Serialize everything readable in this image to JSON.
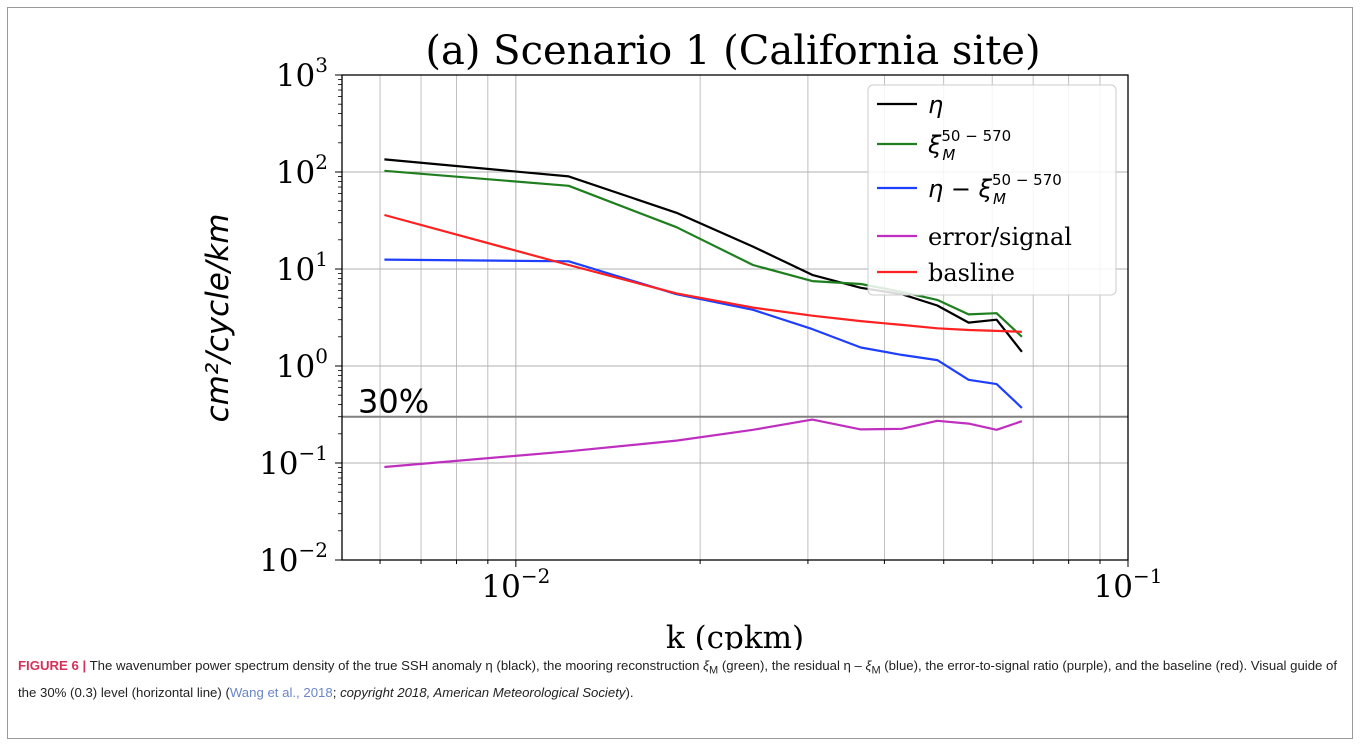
{
  "chart_data": {
    "type": "line",
    "title": "(a) Scenario 1 (California site)",
    "xlabel": "k (cpkm)",
    "ylabel": "cm²/cycle/km",
    "x_scale": "log",
    "y_scale": "log",
    "xlim": [
      0.0052,
      0.1
    ],
    "ylim": [
      0.01,
      1000
    ],
    "x_ticks": [
      {
        "value": 0.01,
        "base": "10",
        "exp": "−2"
      },
      {
        "value": 0.1,
        "base": "10",
        "exp": "−1"
      }
    ],
    "y_ticks": [
      {
        "value": 1000,
        "base": "10",
        "exp": "3"
      },
      {
        "value": 100,
        "base": "10",
        "exp": "2"
      },
      {
        "value": 10,
        "base": "10",
        "exp": "1"
      },
      {
        "value": 1,
        "base": "10",
        "exp": "0"
      },
      {
        "value": 0.1,
        "base": "10",
        "exp": "−1"
      },
      {
        "value": 0.01,
        "base": "10",
        "exp": "−2"
      }
    ],
    "grid": true,
    "legend_position": "top-right",
    "x": [
      0.0061,
      0.0122,
      0.0183,
      0.0244,
      0.0305,
      0.0366,
      0.0427,
      0.0488,
      0.0549,
      0.061,
      0.0671
    ],
    "series": [
      {
        "name": "η",
        "color": "#000000",
        "legend": {
          "base": "η"
        },
        "values": [
          135,
          90,
          38,
          17,
          8.7,
          6.4,
          5.5,
          4.2,
          2.8,
          3.0,
          1.4
        ]
      },
      {
        "name": "ξ_M^{50−570}",
        "color": "#1f7f1f",
        "legend": {
          "base": "ξ",
          "sub": "M",
          "sup": "50 − 570"
        },
        "values": [
          103,
          72,
          27,
          11,
          7.5,
          7.0,
          5.8,
          4.8,
          3.4,
          3.5,
          2.0
        ]
      },
      {
        "name": "η − ξ_M^{50−570}",
        "color": "#1f3fff",
        "legend": {
          "base": "η − ξ",
          "sub": "M",
          "sup": "50 − 570"
        },
        "values": [
          12.5,
          12.0,
          5.5,
          3.8,
          2.4,
          1.55,
          1.3,
          1.15,
          0.72,
          0.65,
          0.37
        ]
      },
      {
        "name": "error/signal",
        "color": "#bf2fbf",
        "legend": {
          "base": "error/signal"
        },
        "values": [
          0.091,
          0.132,
          0.17,
          0.22,
          0.28,
          0.222,
          0.225,
          0.272,
          0.255,
          0.22,
          0.27
        ]
      },
      {
        "name": "basline",
        "color": "#ff2020",
        "legend": {
          "base": "basline"
        },
        "values": [
          36,
          11,
          5.6,
          4.0,
          3.3,
          2.9,
          2.65,
          2.45,
          2.35,
          2.3,
          2.25
        ]
      }
    ],
    "reference_line": {
      "y": 0.3,
      "label": "30%",
      "color": "#808080"
    }
  },
  "caption": {
    "figure_label": "FIGURE 6 |",
    "text_1": " The wavenumber power spectrum density of the true SSH anomaly η (black), the mooring reconstruction ",
    "xi_m_1": "ξ",
    "sub_1": "M",
    "text_2": " (green), the residual η – ",
    "xi_m_2": "ξ",
    "sub_2": "M",
    "text_3": " (blue), the error-to-signal ratio (purple), and the baseline (red). Visual guide of the 30% (0.3) level (horizontal line) (",
    "ref": "Wang et al., 2018",
    "text_4": "; ",
    "copyright": "copyright 2018, American Meteorological Society",
    "text_5": ")."
  }
}
